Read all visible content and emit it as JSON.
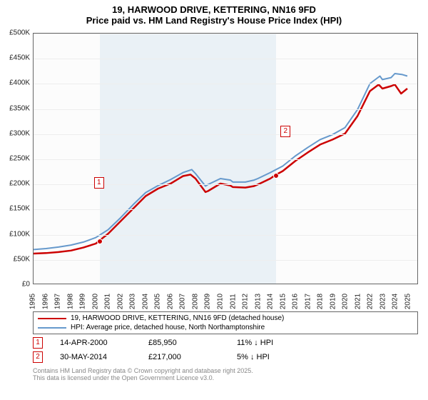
{
  "title_line1": "19, HARWOOD DRIVE, KETTERING, NN16 9FD",
  "title_line2": "Price paid vs. HM Land Registry's House Price Index (HPI)",
  "chart": {
    "type": "line",
    "background_color": "#fcfcfc",
    "grid_color": "#eeeeee",
    "border_color": "#666666",
    "shade_color": "#eaf1f6",
    "x_min": 1995,
    "x_max": 2025.8,
    "y_min": 0,
    "y_max": 500000,
    "y_ticks": [
      0,
      50000,
      100000,
      150000,
      200000,
      250000,
      300000,
      350000,
      400000,
      450000,
      500000
    ],
    "y_tick_labels": [
      "£0",
      "£50K",
      "£100K",
      "£150K",
      "£200K",
      "£250K",
      "£300K",
      "£350K",
      "£400K",
      "£450K",
      "£500K"
    ],
    "x_ticks": [
      1995,
      1996,
      1997,
      1998,
      1999,
      2000,
      2001,
      2002,
      2003,
      2004,
      2005,
      2006,
      2007,
      2008,
      2009,
      2010,
      2011,
      2012,
      2013,
      2014,
      2015,
      2016,
      2017,
      2018,
      2019,
      2020,
      2021,
      2022,
      2023,
      2024,
      2025
    ],
    "shaded_ranges": [
      [
        2000.29,
        2014.41
      ]
    ],
    "series": [
      {
        "name": "price_paid",
        "label": "19, HARWOOD DRIVE, KETTERING, NN16 9FD (detached house)",
        "color": "#cc0000",
        "line_width": 2.5,
        "data": [
          [
            1995,
            60000
          ],
          [
            1996,
            61000
          ],
          [
            1997,
            63000
          ],
          [
            1998,
            66000
          ],
          [
            1999,
            72000
          ],
          [
            2000,
            80000
          ],
          [
            2000.29,
            85950
          ],
          [
            2001,
            100000
          ],
          [
            2002,
            125000
          ],
          [
            2003,
            150000
          ],
          [
            2004,
            175000
          ],
          [
            2005,
            190000
          ],
          [
            2006,
            200000
          ],
          [
            2007,
            215000
          ],
          [
            2007.6,
            218000
          ],
          [
            2008,
            210000
          ],
          [
            2008.8,
            183000
          ],
          [
            2009,
            185000
          ],
          [
            2010,
            200000
          ],
          [
            2010.8,
            196000
          ],
          [
            2011,
            193000
          ],
          [
            2012,
            192000
          ],
          [
            2012.7,
            195000
          ],
          [
            2013,
            198000
          ],
          [
            2014,
            210000
          ],
          [
            2014.41,
            217000
          ],
          [
            2015,
            225000
          ],
          [
            2016,
            245000
          ],
          [
            2017,
            262000
          ],
          [
            2018,
            278000
          ],
          [
            2019,
            288000
          ],
          [
            2020,
            300000
          ],
          [
            2021,
            335000
          ],
          [
            2022,
            385000
          ],
          [
            2022.7,
            398000
          ],
          [
            2023,
            390000
          ],
          [
            2023.7,
            395000
          ],
          [
            2024,
            398000
          ],
          [
            2024.5,
            380000
          ],
          [
            2025,
            390000
          ]
        ]
      },
      {
        "name": "hpi",
        "label": "HPI: Average price, detached house, North Northamptonshire",
        "color": "#6699cc",
        "line_width": 2,
        "data": [
          [
            1995,
            68000
          ],
          [
            1996,
            70000
          ],
          [
            1997,
            73000
          ],
          [
            1998,
            77000
          ],
          [
            1999,
            83000
          ],
          [
            2000,
            92000
          ],
          [
            2001,
            108000
          ],
          [
            2002,
            132000
          ],
          [
            2003,
            158000
          ],
          [
            2004,
            182000
          ],
          [
            2005,
            196000
          ],
          [
            2006,
            208000
          ],
          [
            2007,
            222000
          ],
          [
            2007.7,
            228000
          ],
          [
            2008,
            220000
          ],
          [
            2008.8,
            195000
          ],
          [
            2009,
            198000
          ],
          [
            2010,
            210000
          ],
          [
            2010.8,
            207000
          ],
          [
            2011,
            203000
          ],
          [
            2012,
            203000
          ],
          [
            2012.7,
            207000
          ],
          [
            2013,
            210000
          ],
          [
            2014,
            222000
          ],
          [
            2015,
            235000
          ],
          [
            2016,
            255000
          ],
          [
            2017,
            272000
          ],
          [
            2018,
            288000
          ],
          [
            2019,
            298000
          ],
          [
            2020,
            312000
          ],
          [
            2021,
            348000
          ],
          [
            2022,
            400000
          ],
          [
            2022.8,
            415000
          ],
          [
            2023,
            408000
          ],
          [
            2023.7,
            412000
          ],
          [
            2024,
            420000
          ],
          [
            2024.6,
            418000
          ],
          [
            2025,
            415000
          ]
        ]
      }
    ],
    "markers": [
      {
        "x": 2000.29,
        "y": 85950,
        "fill": "#cc0000",
        "stroke": "#ffffff",
        "callout_index": "1",
        "callout_color": "#cc0000",
        "callout_dx": -8,
        "callout_dy": -90
      },
      {
        "x": 2014.41,
        "y": 217000,
        "fill": "#cc0000",
        "stroke": "#ffffff",
        "callout_index": "2",
        "callout_color": "#cc0000",
        "callout_dx": 6,
        "callout_dy": -70
      }
    ]
  },
  "legend": {
    "border_color": "#666666",
    "items": [
      {
        "color": "#cc0000",
        "label": "19, HARWOOD DRIVE, KETTERING, NN16 9FD (detached house)"
      },
      {
        "color": "#6699cc",
        "label": "HPI: Average price, detached house, North Northamptonshire"
      }
    ]
  },
  "annotations": [
    {
      "index": "1",
      "color": "#cc0000",
      "date": "14-APR-2000",
      "price": "£85,950",
      "delta": "11% ↓ HPI"
    },
    {
      "index": "2",
      "color": "#cc0000",
      "date": "30-MAY-2014",
      "price": "£217,000",
      "delta": "5% ↓ HPI"
    }
  ],
  "footer_line1": "Contains HM Land Registry data © Crown copyright and database right 2025.",
  "footer_line2": "This data is licensed under the Open Government Licence v3.0."
}
